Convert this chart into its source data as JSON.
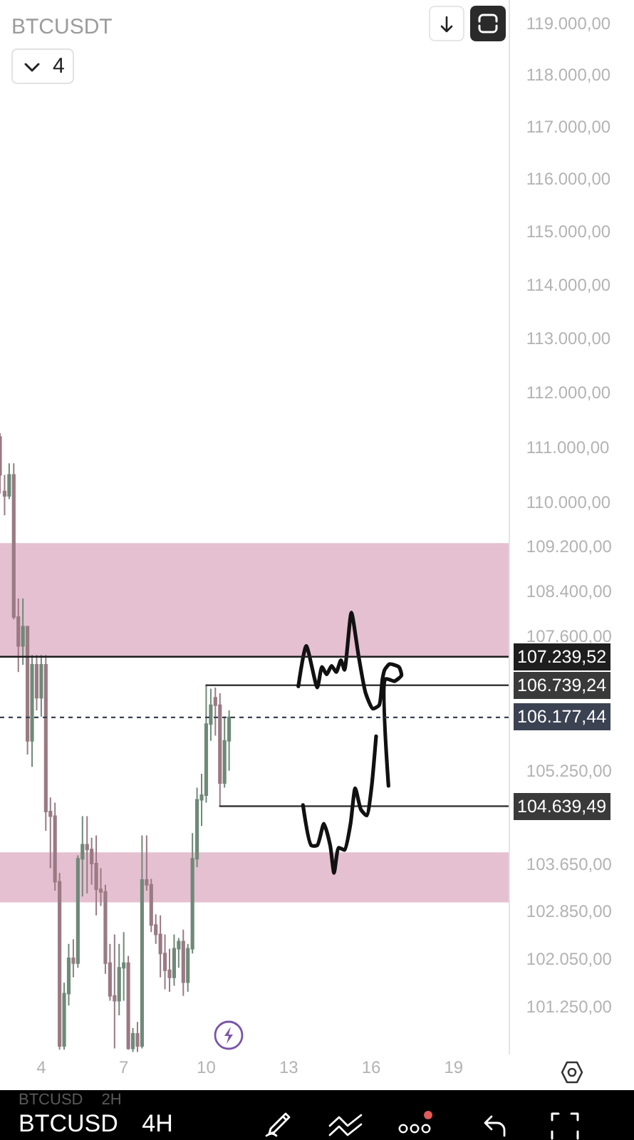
{
  "chart_data": {
    "type": "candlestick",
    "title": "BTCUSDT",
    "x": [
      2.5,
      2.6667,
      2.8333,
      3,
      3.1667,
      3.3333,
      3.5,
      3.6667,
      3.8333,
      4,
      4.1667,
      4.3333,
      4.5,
      4.6667,
      4.8333,
      5,
      5.1667,
      5.3333,
      5.5,
      5.6667,
      5.8333,
      6,
      6.1667,
      6.3333,
      6.5,
      6.6667,
      6.8333,
      7,
      7.1667,
      7.3333,
      7.5,
      7.6667,
      7.8333,
      8,
      8.1667,
      8.3333,
      8.5,
      8.6667,
      8.8333,
      9,
      9.1667,
      9.3333,
      9.5,
      9.6667,
      9.8333,
      10,
      10.1667,
      10.3333,
      10.5,
      10.6667,
      10.8333
    ],
    "ohlc": [
      [
        111180,
        111250,
        110150,
        110490
      ],
      [
        110190,
        110490,
        109760,
        110110
      ],
      [
        110110,
        110700,
        110050,
        110490
      ],
      [
        110490,
        110700,
        107900,
        107940
      ],
      [
        107940,
        108270,
        106970,
        107430
      ],
      [
        107430,
        108270,
        107100,
        107770
      ],
      [
        107770,
        107770,
        105530,
        105770
      ],
      [
        105770,
        107270,
        105320,
        107100
      ],
      [
        107100,
        107270,
        106300,
        106520
      ],
      [
        106520,
        107270,
        106190,
        107100
      ],
      [
        107100,
        107270,
        104220,
        104550
      ],
      [
        104550,
        104790,
        103580,
        104470
      ],
      [
        104470,
        104700,
        103200,
        103350
      ],
      [
        103350,
        103500,
        100540,
        100600
      ],
      [
        100600,
        101650,
        100540,
        101470
      ],
      [
        101470,
        102300,
        101270,
        102060
      ],
      [
        102060,
        102380,
        101740,
        101980
      ],
      [
        101980,
        103800,
        101900,
        103740
      ],
      [
        103740,
        104470,
        103100,
        103980
      ],
      [
        103980,
        104470,
        103150,
        103900
      ],
      [
        103900,
        104100,
        103300,
        103660
      ],
      [
        103660,
        104140,
        102780,
        103220
      ],
      [
        103220,
        103580,
        102940,
        103180
      ],
      [
        103180,
        103300,
        101800,
        101980
      ],
      [
        101980,
        102300,
        101350,
        101430
      ],
      [
        101430,
        102460,
        100560,
        101350
      ],
      [
        101350,
        102300,
        101110,
        101900
      ],
      [
        101900,
        102500,
        101350,
        101980
      ],
      [
        101980,
        102100,
        100540,
        100560
      ],
      [
        100560,
        100900,
        100500,
        100800
      ],
      [
        100800,
        101000,
        100500,
        100600
      ],
      [
        100600,
        104140,
        100560,
        103380
      ],
      [
        103380,
        104140,
        103200,
        103300
      ],
      [
        103300,
        103400,
        102500,
        102620
      ],
      [
        102620,
        102800,
        102300,
        102460
      ],
      [
        102460,
        102780,
        101740,
        102140
      ],
      [
        102140,
        102460,
        101540,
        101860
      ],
      [
        101860,
        102220,
        101500,
        101740
      ],
      [
        101740,
        102460,
        101600,
        102220
      ],
      [
        102220,
        102400,
        101900,
        102340
      ],
      [
        102340,
        102540,
        101430,
        101660
      ],
      [
        101660,
        102300,
        101500,
        102220
      ],
      [
        102220,
        104180,
        102140,
        103740
      ],
      [
        103740,
        104960,
        103600,
        104750
      ],
      [
        104750,
        105200,
        104300,
        104830
      ],
      [
        104830,
        106740,
        104700,
        106060
      ],
      [
        106060,
        106680,
        105770,
        106390
      ],
      [
        106520,
        106700,
        105860,
        106390
      ],
      [
        106390,
        106600,
        104640,
        105040
      ],
      [
        105040,
        106190,
        104960,
        105770
      ],
      [
        105770,
        106300,
        105250,
        106177.44
      ]
    ],
    "colors": [
      "#9a7a84",
      "#9a7a84",
      "#6f8a78",
      "#9a7a84",
      "#9a7a84",
      "#6f8a78",
      "#9a7a84",
      "#6f8a78",
      "#9a7a84",
      "#6f8a78",
      "#9a7a84",
      "#9a7a84",
      "#9a7a84",
      "#9a7a84",
      "#6f8a78",
      "#6f8a78",
      "#9a7a84",
      "#6f8a78",
      "#6f8a78",
      "#9a7a84",
      "#9a7a84",
      "#9a7a84",
      "#9a7a84",
      "#9a7a84",
      "#9a7a84",
      "#9a7a84",
      "#6f8a78",
      "#6f8a78",
      "#9a7a84",
      "#6f8a78",
      "#9a7a84",
      "#6f8a78",
      "#9a7a84",
      "#9a7a84",
      "#9a7a84",
      "#9a7a84",
      "#9a7a84",
      "#9a7a84",
      "#6f8a78",
      "#6f8a78",
      "#9a7a84",
      "#6f8a78",
      "#6f8a78",
      "#6f8a78",
      "#6f8a78",
      "#6f8a78",
      "#6f8a78",
      "#9a7a84",
      "#9a7a84",
      "#6f8a78",
      "#6f8a78"
    ],
    "xlim": [
      2.5,
      21.0
    ],
    "xticks": [
      4,
      7,
      10,
      13,
      16,
      19
    ],
    "ylim": [
      100460,
      119450
    ],
    "log": "y",
    "yticks": [
      {
        "value": 119000,
        "label": "119.000,00"
      },
      {
        "value": 118000,
        "label": "118.000,00"
      },
      {
        "value": 117000,
        "label": "117.000,00"
      },
      {
        "value": 116000,
        "label": "116.000,00"
      },
      {
        "value": 115000,
        "label": "115.000,00"
      },
      {
        "value": 114000,
        "label": "114.000,00"
      },
      {
        "value": 113000,
        "label": "113.000,00"
      },
      {
        "value": 112000,
        "label": "112.000,00"
      },
      {
        "value": 111000,
        "label": "111.000,00"
      },
      {
        "value": 110000,
        "label": "110.000,00"
      },
      {
        "value": 109200,
        "label": "109.200,00"
      },
      {
        "value": 108400,
        "label": "108.400,00"
      },
      {
        "value": 107600,
        "label": "107.600,00"
      },
      {
        "value": 105250,
        "label": "105.250,00"
      },
      {
        "value": 103650,
        "label": "103.650,00"
      },
      {
        "value": 102850,
        "label": "102.850,00"
      },
      {
        "value": 102050,
        "label": "102.050,00"
      },
      {
        "value": 101250,
        "label": "101.250,00"
      }
    ],
    "bands": [
      {
        "axis": "y",
        "from": 107240,
        "to": 109260,
        "color": "#e5c0d0"
      },
      {
        "axis": "y",
        "from": 103000,
        "to": 103850,
        "color": "#e5c0d0"
      }
    ],
    "ref_lines": [
      {
        "axis": "y",
        "value": 107239.52,
        "label": "107.239,52",
        "color": "#1e1e1e",
        "line_style": "solid"
      },
      {
        "axis": "y",
        "value": 106177.44,
        "label": "106.177,44",
        "color": "#3b4252",
        "line_style": "dotted"
      }
    ],
    "series": [
      {
        "type": "line",
        "x": [
          10,
          21.0
        ],
        "values": [
          106739.24,
          106739.24
        ],
        "value_labels": [
          null,
          "106.739,24"
        ],
        "color": "#3a3a3a"
      },
      {
        "type": "line",
        "x": [
          10.5,
          21.0
        ],
        "values": [
          104639.49,
          104639.49
        ],
        "value_labels": [
          null,
          "104.639,49"
        ],
        "color": "#3a3a3a"
      },
      {
        "type": "line",
        "x": [
          13.35,
          13.64,
          14.04,
          14.21,
          14.38,
          14.56,
          14.73,
          14.9,
          15.03,
          15.28,
          15.54,
          15.8,
          16.06,
          16.29,
          16.41,
          16.49,
          16.67,
          17.01,
          17.1,
          16.84,
          16.53,
          16.63
        ],
        "values": [
          106720,
          107430,
          106700,
          107060,
          106930,
          107080,
          106970,
          107180,
          107010,
          108020,
          107260,
          106600,
          106330,
          106390,
          106850,
          107010,
          107110,
          107060,
          106910,
          106810,
          106850,
          104990
        ],
        "color": "#111111"
      },
      {
        "type": "line",
        "x": [
          13.52,
          13.82,
          14.04,
          14.28,
          14.51,
          14.65,
          14.82,
          15.03,
          15.25,
          15.42,
          15.63,
          15.84,
          16.01,
          16.18
        ],
        "values": [
          104660,
          103970,
          103970,
          104340,
          103970,
          103500,
          103930,
          103890,
          104340,
          104950,
          104580,
          104480,
          104950,
          105850
        ],
        "color": "#111111"
      }
    ],
    "annotations": [
      "4",
      "BTCUSD 2H",
      "BTCUSD 4H"
    ]
  }
}
